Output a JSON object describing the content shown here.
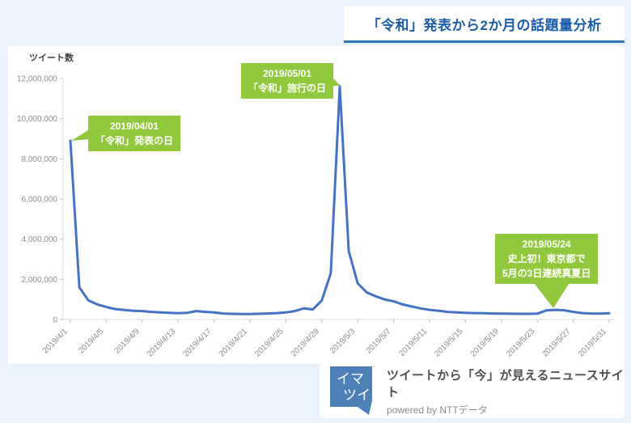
{
  "header": {
    "title": "「令和」発表から2か月の話題量分析"
  },
  "panel": {
    "y_axis_title": "ツイート数"
  },
  "chart_data": {
    "type": "line",
    "title": "「令和」発表から2か月の話題量分析",
    "xlabel": "",
    "ylabel": "ツイート数",
    "ylim": [
      0,
      12000000
    ],
    "grid": false,
    "legend": "none",
    "line_color": "#4472c4",
    "axis_color": "#d9d9d9",
    "x": [
      "2019/4/1",
      "2019/4/2",
      "2019/4/3",
      "2019/4/4",
      "2019/4/5",
      "2019/4/6",
      "2019/4/7",
      "2019/4/8",
      "2019/4/9",
      "2019/4/10",
      "2019/4/11",
      "2019/4/12",
      "2019/4/13",
      "2019/4/14",
      "2019/4/15",
      "2019/4/16",
      "2019/4/17",
      "2019/4/18",
      "2019/4/19",
      "2019/4/20",
      "2019/4/21",
      "2019/4/22",
      "2019/4/23",
      "2019/4/24",
      "2019/4/25",
      "2019/4/26",
      "2019/4/27",
      "2019/4/28",
      "2019/4/29",
      "2019/4/30",
      "2019/5/1",
      "2019/5/2",
      "2019/5/3",
      "2019/5/4",
      "2019/5/5",
      "2019/5/6",
      "2019/5/7",
      "2019/5/8",
      "2019/5/9",
      "2019/5/10",
      "2019/5/11",
      "2019/5/12",
      "2019/5/13",
      "2019/5/14",
      "2019/5/15",
      "2019/5/16",
      "2019/5/17",
      "2019/5/18",
      "2019/5/19",
      "2019/5/20",
      "2019/5/21",
      "2019/5/22",
      "2019/5/23",
      "2019/5/24",
      "2019/5/25",
      "2019/5/26",
      "2019/5/27",
      "2019/5/28",
      "2019/5/29",
      "2019/5/30",
      "2019/5/31"
    ],
    "values": [
      8900000,
      1600000,
      950000,
      750000,
      620000,
      520000,
      470000,
      430000,
      420000,
      380000,
      350000,
      330000,
      310000,
      330000,
      420000,
      380000,
      350000,
      300000,
      280000,
      270000,
      270000,
      280000,
      300000,
      320000,
      350000,
      420000,
      550000,
      500000,
      950000,
      2300000,
      11600000,
      3400000,
      1800000,
      1350000,
      1150000,
      1000000,
      900000,
      750000,
      650000,
      550000,
      480000,
      430000,
      380000,
      350000,
      330000,
      320000,
      310000,
      300000,
      290000,
      285000,
      280000,
      280000,
      290000,
      450000,
      480000,
      460000,
      380000,
      320000,
      300000,
      290000,
      310000
    ],
    "x_tick_labels": [
      "2019/4/1",
      "2019/4/5",
      "2019/4/9",
      "2019/4/13",
      "2019/4/17",
      "2019/4/21",
      "2019/4/25",
      "2019/4/29",
      "2019/5/3",
      "2019/5/7",
      "2019/5/11",
      "2019/5/15",
      "2019/5/19",
      "2019/5/23",
      "2019/5/27",
      "2019/5/31"
    ],
    "y_tick_labels": [
      "0",
      "2,000,000",
      "4,000,000",
      "6,000,000",
      "8,000,000",
      "10,000,000",
      "12,000,000"
    ],
    "annotations": [
      {
        "date": "2019/04/01",
        "lines": [
          "2019/04/01",
          "「令和」発表の日"
        ]
      },
      {
        "date": "2019/05/01",
        "lines": [
          "2019/05/01",
          "「令和」施行の日"
        ]
      },
      {
        "date": "2019/05/24",
        "lines": [
          "2019/05/24",
          "史上初！東京都で",
          "5月の3日連続真夏日"
        ]
      }
    ],
    "annotation_color": "#92c83e"
  },
  "footer": {
    "logo_line1": "イマ",
    "logo_line2": "ツイ",
    "tagline": "ツイートから「今」が見えるニュースサイト",
    "powered_by": "powered by NTTデータ"
  },
  "colors": {
    "background": "#eaf2fb",
    "panel": "#ffffff",
    "title_text": "#1a5ca8",
    "title_underline": "#2e78bd",
    "line": "#4472c4",
    "annotation_green": "#92c83e",
    "logo_blue": "#4e80b8"
  }
}
